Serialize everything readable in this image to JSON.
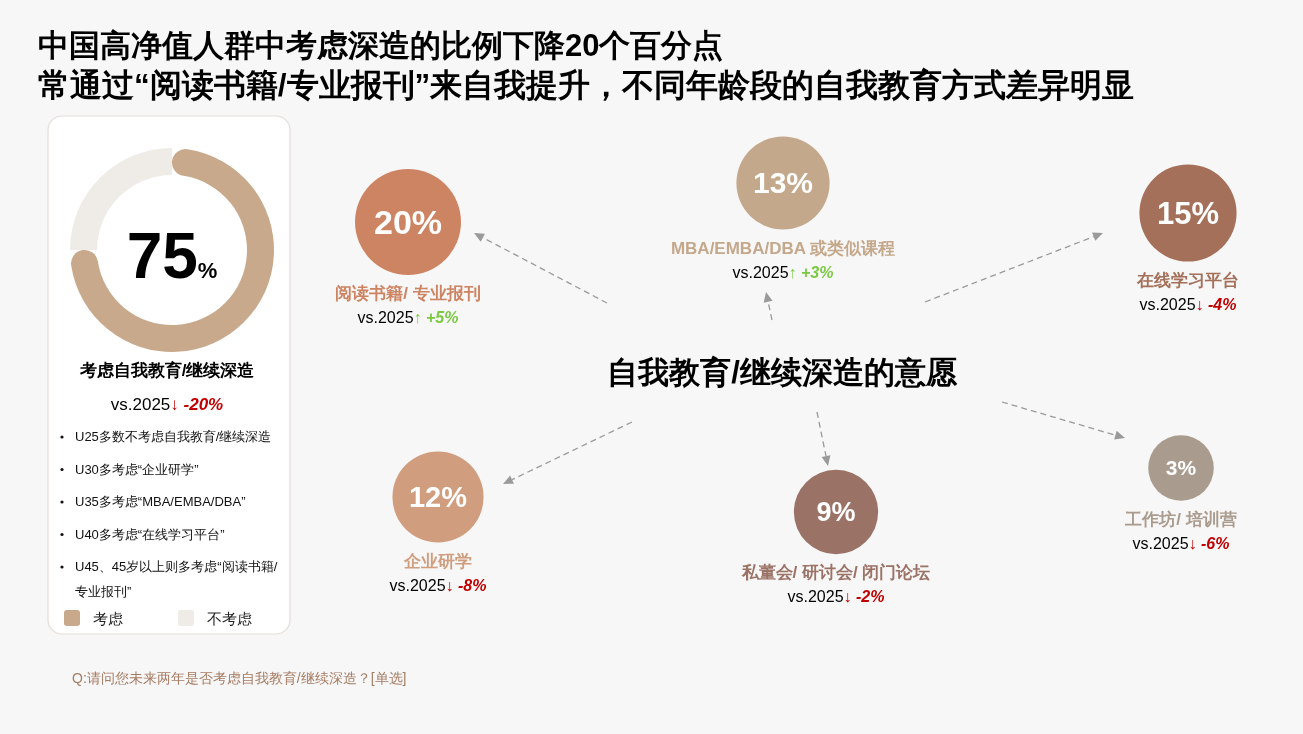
{
  "chart_data": [
    {
      "type": "donut",
      "title": "中国高净值人群中考虑深造的比例下降20个百分点",
      "subtitle": "常通过“阅读书籍/专业报刊”来自我提升，不同年龄段的自我教育方式差异明显",
      "categories": [
        "考虑",
        "不考虑"
      ],
      "values": [
        75,
        25
      ],
      "colors": [
        "#c9a98b",
        "#efebe7"
      ],
      "value_labels": [
        "75%",
        null
      ],
      "legend": "bottom",
      "annotations": [
        "考虑自我教育/继续深造",
        "vs.2025↓ -20%",
        "U25多数不考虑自我教育/继续深造",
        "U30多考虑“企业研学”",
        "U35多考虑“MBA/EMBA/DBA”",
        "U40多考虑“在线学习平台”",
        "U45、45岁以上则多考虑“阅读书籍/ 专业报刊”",
        "Q:请问您未来两年是否考虑自我教育/继续深造？[单选]"
      ]
    },
    {
      "type": "other",
      "title": "自我教育/继续深造的意愿",
      "categories": [
        "阅读书籍/ 专业报刊",
        "MBA/EMBA/DBA 或类似课程",
        "在线学习平台",
        "企业研学",
        "私董会/ 研讨会/ 闭门论坛",
        "工作坊/ 培训营"
      ],
      "values": [
        20,
        13,
        15,
        12,
        9,
        3
      ],
      "value_labels": [
        "20%",
        "13%",
        "15%",
        "12%",
        "9%",
        "3%"
      ],
      "colors": [
        "#cd8463",
        "#c4a88b",
        "#a4705a",
        "#d09e7f",
        "#9b7366",
        "#a99b8d"
      ],
      "annotations": [
        "vs.2025↑ +5%",
        "vs.2025↑ +3%",
        "vs.2025↓ -4%",
        "vs.2025↓ -8%",
        "vs.2025↓ -2%",
        "vs.2025↓ -6%"
      ]
    }
  ]
}
